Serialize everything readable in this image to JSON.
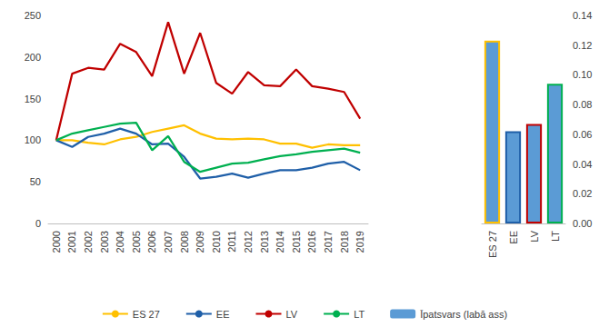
{
  "chart_data": [
    {
      "type": "line",
      "categories": [
        "2000",
        "2001",
        "2002",
        "2003",
        "2004",
        "2005",
        "2006",
        "2007",
        "2008",
        "2009",
        "2010",
        "2011",
        "2012",
        "2013",
        "2014",
        "2015",
        "2016",
        "2017",
        "2018",
        "2019"
      ],
      "series": [
        {
          "name": "ES 27",
          "color": "#ffc000",
          "values": [
            100,
            100,
            97,
            95,
            101,
            104,
            110,
            114,
            118,
            108,
            102,
            101,
            102,
            101,
            96,
            96,
            91,
            95,
            94,
            94
          ]
        },
        {
          "name": "EE",
          "color": "#1f5fa8",
          "values": [
            100,
            92,
            104,
            108,
            114,
            108,
            95,
            96,
            80,
            54,
            56,
            60,
            55,
            60,
            64,
            64,
            67,
            72,
            74,
            64
          ]
        },
        {
          "name": "LV",
          "color": "#c00000",
          "values": [
            100,
            180,
            187,
            185,
            216,
            206,
            177,
            242,
            180,
            229,
            169,
            156,
            182,
            166,
            165,
            185,
            165,
            162,
            158,
            126
          ]
        },
        {
          "name": "LT",
          "color": "#00b050",
          "values": [
            100,
            108,
            112,
            116,
            120,
            121,
            88,
            105,
            74,
            62,
            67,
            72,
            73,
            77,
            81,
            83,
            86,
            88,
            90,
            85
          ]
        }
      ],
      "ylim": [
        0,
        250
      ],
      "yticks": [
        0,
        50,
        100,
        150,
        200,
        250
      ],
      "grid": false,
      "legend": "bottom"
    },
    {
      "type": "bar",
      "categories": [
        "ES 27",
        "EE",
        "LV",
        "LT"
      ],
      "series": [
        {
          "name": "Īpatsvars (labā ass)",
          "color": "#5b9bd5",
          "colors": [
            "#ffc000",
            "#1f5fa8",
            "#c00000",
            "#00b050"
          ],
          "values": [
            0.123,
            0.062,
            0.067,
            0.094
          ],
          "axis": "y2"
        }
      ],
      "y2lim": [
        0,
        0.14
      ],
      "y2ticks": [
        {
          "value": 0,
          "label": "0.00"
        },
        {
          "value": 0.02,
          "label": "0.02"
        },
        {
          "value": 0.04,
          "label": "0.04"
        },
        {
          "value": 0.06,
          "label": "0.06"
        },
        {
          "value": 0.08,
          "label": "0.08"
        },
        {
          "value": 0.1,
          "label": "0.10"
        },
        {
          "value": 0.12,
          "label": "0.12"
        },
        {
          "value": 0.14,
          "label": "0.14"
        }
      ],
      "grid": false
    }
  ]
}
